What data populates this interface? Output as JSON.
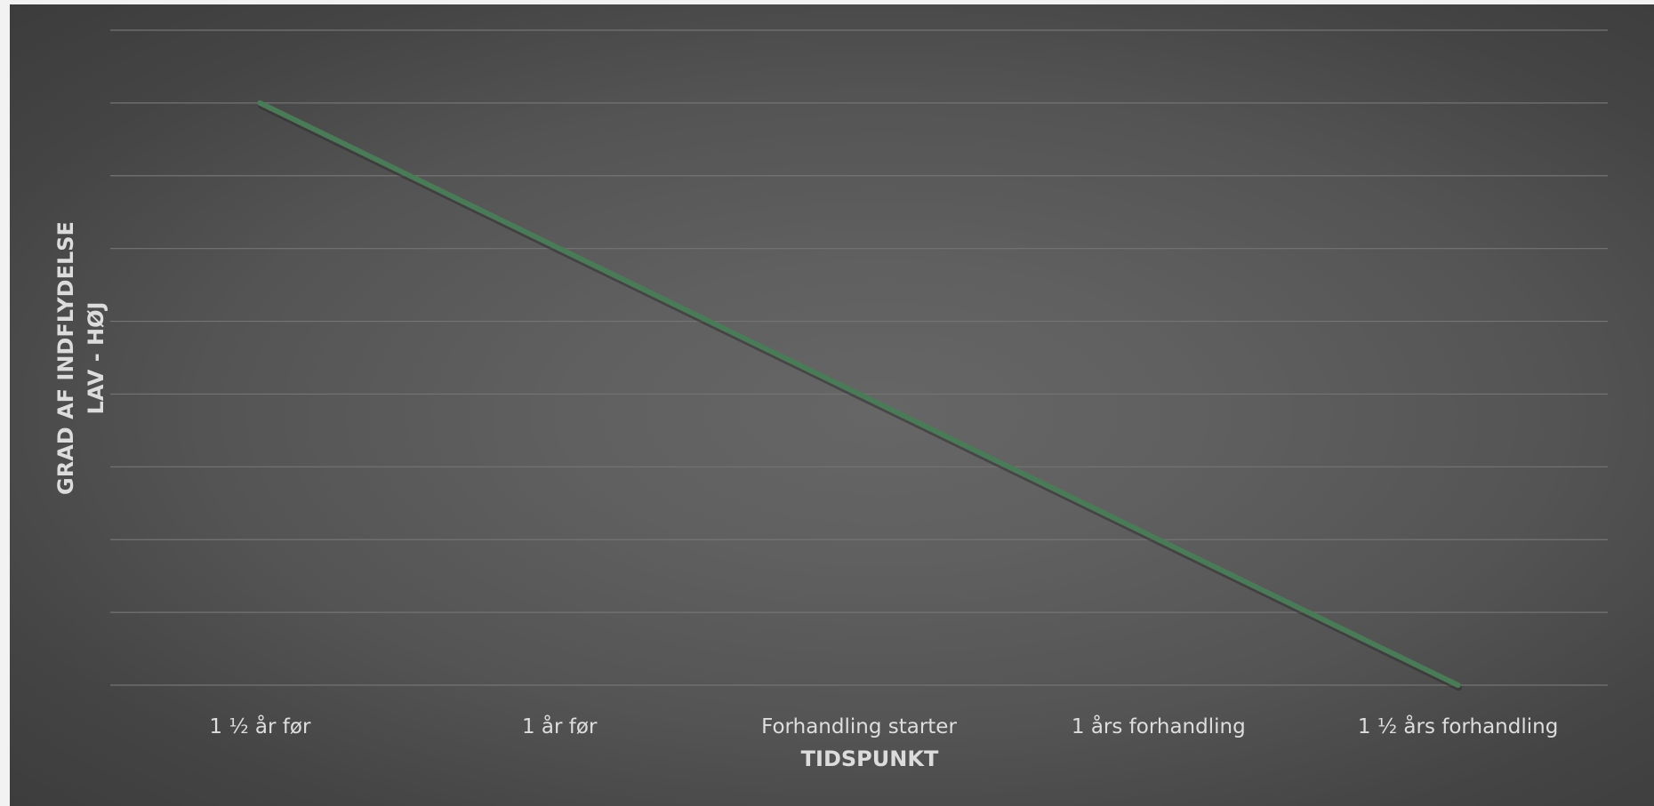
{
  "chart_data": {
    "type": "line",
    "categories": [
      "1 ½ år før",
      "1 år før",
      "Forhandling starter",
      "1 års forhandling",
      "1 ½ års forhandling"
    ],
    "series": [
      {
        "values": [
          8,
          6,
          4,
          2,
          0
        ]
      }
    ],
    "ylim": [
      0,
      9
    ],
    "y_gridline_step": 1,
    "grid": true,
    "y_tick_labels_shown": false,
    "xlabel": "TIDSPUNKT",
    "ylabel_lines": [
      "GRAD AF INDFLYDELSE",
      "LAV - HØJ"
    ],
    "colors": {
      "line": "#4a7a57",
      "line_shadow": "#2e2e2e",
      "gridline": "#747474"
    }
  }
}
